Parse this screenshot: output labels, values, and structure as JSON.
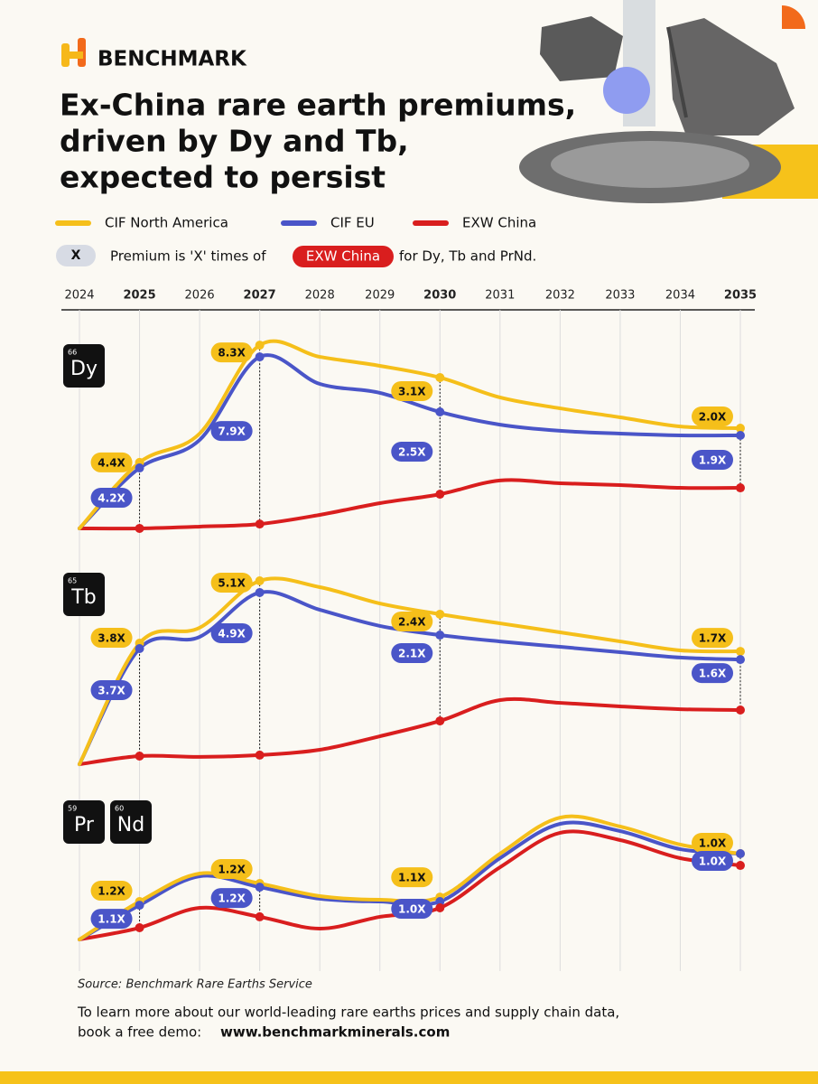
{
  "header": {
    "brand": "BENCHMARK",
    "title_lines": [
      "Ex-China rare earth premiums,",
      "driven by Dy and Tb,",
      "expected to persist"
    ]
  },
  "note": {
    "badge": "X",
    "before": "Premium is 'X' times of",
    "highlight": "EXW China",
    "after": "for Dy, Tb and PrNd."
  },
  "axis": {
    "xlim": [
      2024,
      2035
    ],
    "xticks": [
      2024,
      2025,
      2026,
      2027,
      2028,
      2029,
      2030,
      2031,
      2032,
      2033,
      2034,
      2035
    ],
    "bold_ticks": [
      2025,
      2027,
      2030,
      2035
    ]
  },
  "chart_data": [
    {
      "type": "line",
      "elements": [
        {
          "number": "66",
          "symbol": "Dy"
        }
      ],
      "x": [
        2024,
        2025,
        2026,
        2027,
        2028,
        2029,
        2030,
        2031,
        2032,
        2033,
        2034,
        2035
      ],
      "ylim": [
        0,
        100
      ],
      "marker_x": [
        2025,
        2027,
        2030,
        2035
      ],
      "series": [
        {
          "name": "CIF North America",
          "color": "#f5bf1a",
          "values": [
            2.3,
            35.5,
            50,
            94.5,
            88.6,
            84.1,
            78.2,
            68.2,
            62.7,
            58.2,
            53.6,
            52.7
          ],
          "labels": [
            "4.4X",
            "8.3X",
            "3.1X",
            "2.0X"
          ]
        },
        {
          "name": "CIF EU",
          "color": "#4a55c8",
          "values": [
            2.3,
            32.7,
            46.8,
            88.6,
            75,
            70.5,
            60.9,
            54.5,
            51.4,
            50,
            49.1,
            49.1
          ],
          "labels": [
            "4.2X",
            "7.9X",
            "2.5X",
            "1.9X"
          ]
        },
        {
          "name": "EXW China",
          "color": "#d91e1e",
          "values": [
            2.3,
            2.3,
            3.2,
            4.5,
            9.1,
            15,
            19.5,
            26.4,
            25,
            24.1,
            22.7,
            22.7
          ]
        }
      ]
    },
    {
      "type": "line",
      "elements": [
        {
          "number": "65",
          "symbol": "Tb"
        }
      ],
      "x": [
        2024,
        2025,
        2026,
        2027,
        2028,
        2029,
        2030,
        2031,
        2032,
        2033,
        2034,
        2035
      ],
      "ylim": [
        0,
        100
      ],
      "marker_x": [
        2025,
        2027,
        2030,
        2035
      ],
      "series": [
        {
          "name": "CIF North America",
          "color": "#f5bf1a",
          "values": [
            1.8,
            62.7,
            70.5,
            94.1,
            90.9,
            82.7,
            77.3,
            72.7,
            68.2,
            63.6,
            59.1,
            58.6
          ],
          "labels": [
            "3.8X",
            "5.1X",
            "2.4X",
            "1.7X"
          ]
        },
        {
          "name": "CIF EU",
          "color": "#4a55c8",
          "values": [
            1.8,
            60,
            65.9,
            88.2,
            79.5,
            71.4,
            66.8,
            63.6,
            60.9,
            58.2,
            55.5,
            54.5
          ],
          "labels": [
            "3.7X",
            "4.9X",
            "2.1X",
            "1.6X"
          ]
        },
        {
          "name": "EXW China",
          "color": "#d91e1e",
          "values": [
            1.8,
            5.9,
            5.5,
            6.4,
            9.1,
            15.9,
            23.6,
            34.1,
            32.7,
            30.9,
            29.5,
            29.1
          ]
        }
      ]
    },
    {
      "type": "line",
      "elements": [
        {
          "number": "59",
          "symbol": "Pr"
        },
        {
          "number": "60",
          "symbol": "Nd"
        }
      ],
      "x": [
        2024,
        2025,
        2026,
        2027,
        2028,
        2029,
        2030,
        2031,
        2032,
        2033,
        2034,
        2035
      ],
      "ylim": [
        0,
        100
      ],
      "marker_x": [
        2025,
        2027,
        2030,
        2035
      ],
      "series": [
        {
          "name": "CIF North America",
          "color": "#f5bf1a",
          "values": [
            3.2,
            30.3,
            50.3,
            43.2,
            34.2,
            31.6,
            33.5,
            64.5,
            90.3,
            83.9,
            71,
            64.5
          ],
          "labels": [
            "1.2X",
            "1.2X",
            "1.1X",
            "1.0X"
          ]
        },
        {
          "name": "CIF EU",
          "color": "#4a55c8",
          "values": [
            3.2,
            27.7,
            48.4,
            40.6,
            32.3,
            30.3,
            30.3,
            61.3,
            85.8,
            80.6,
            67.7,
            64.5
          ],
          "labels": [
            "1.1X",
            "1.2X",
            "1.0X",
            "1.0X"
          ]
        },
        {
          "name": "EXW China",
          "color": "#d91e1e",
          "values": [
            3.2,
            11.6,
            25.8,
            19.4,
            11,
            19.4,
            25.8,
            54.8,
            79.4,
            74.2,
            61.3,
            56.1
          ]
        }
      ]
    }
  ],
  "source": "Source: Benchmark Rare Earths Service",
  "footer": {
    "line1": "To learn more about our world-leading rare earths prices and supply chain data,",
    "line2_text": "book a free demo:",
    "line2_link": "www.benchmarkminerals.com"
  }
}
